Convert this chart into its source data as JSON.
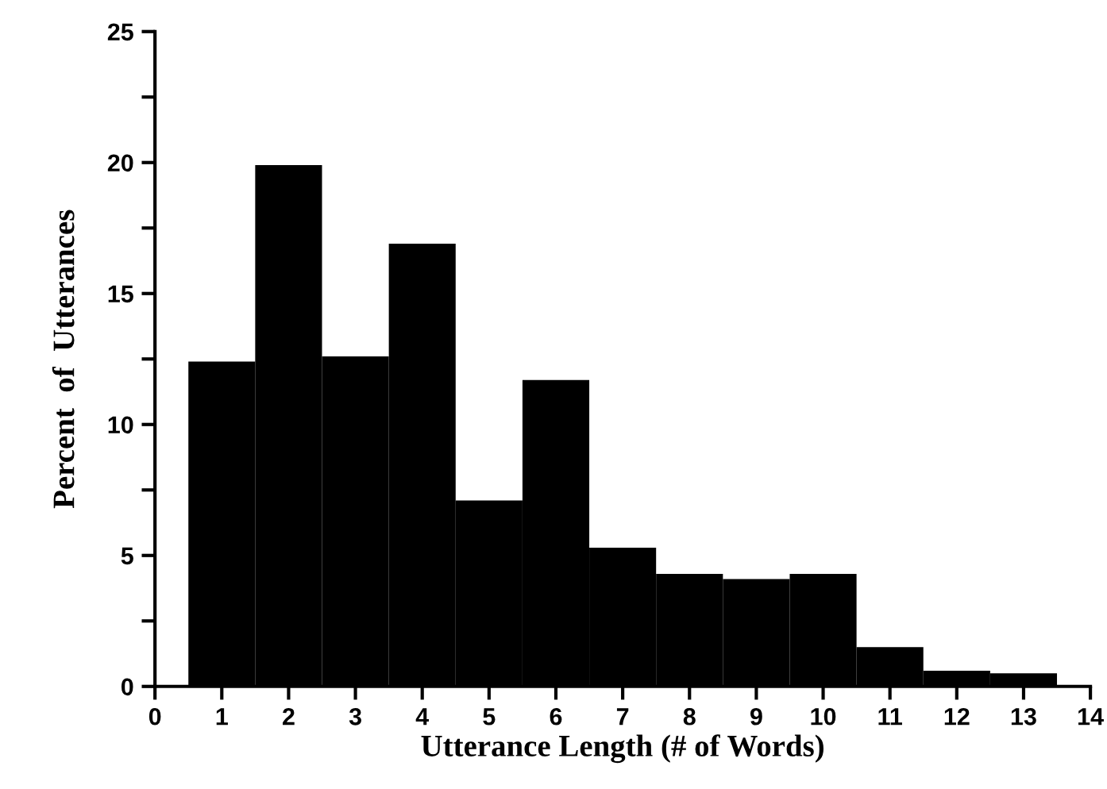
{
  "chart_data": {
    "type": "histogram",
    "xlabel": "Utterance Length (# of Words)",
    "ylabel": "Percent  of  Utterances",
    "bins": [
      0.5,
      1.5,
      2.5,
      3.5,
      4.5,
      5.5,
      6.5,
      7.5,
      8.5,
      9.5,
      10.5,
      11.5,
      12.5,
      13.5
    ],
    "values": [
      12.4,
      19.9,
      12.6,
      16.9,
      7.1,
      11.7,
      5.3,
      4.3,
      4.1,
      4.3,
      1.5,
      0.6,
      0.5
    ],
    "color": "#000000",
    "xlim": [
      0,
      14
    ],
    "xticks": [
      0,
      1,
      2,
      3,
      4,
      5,
      6,
      7,
      8,
      9,
      10,
      11,
      12,
      13,
      14
    ],
    "ylim": [
      0,
      25
    ],
    "yticks": [
      0,
      {
        "value": 2.5,
        "label": null
      },
      5,
      {
        "value": 7.5,
        "label": null
      },
      10,
      {
        "value": 12.5,
        "label": null
      },
      15,
      {
        "value": 17.5,
        "label": null
      },
      20,
      {
        "value": 22.5,
        "label": null
      },
      25
    ],
    "grid": false
  }
}
